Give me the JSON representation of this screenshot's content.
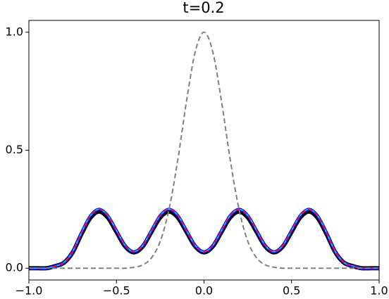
{
  "chart_data": {
    "type": "line",
    "title": "t=0.2",
    "x": [
      -1,
      -0.95,
      -0.9,
      -0.85,
      -0.8,
      -0.75,
      -0.7,
      -0.65,
      -0.6,
      -0.55,
      -0.5,
      -0.45,
      -0.4,
      -0.35,
      -0.3,
      -0.25,
      -0.2,
      -0.15,
      -0.1,
      -0.05,
      0,
      0.05,
      0.1,
      0.15,
      0.2,
      0.25,
      0.3,
      0.35,
      0.4,
      0.45,
      0.5,
      0.55,
      0.6,
      0.65,
      0.7,
      0.75,
      0.8,
      0.85,
      0.9,
      0.95,
      1
    ],
    "series": [
      {
        "color": "#000000",
        "width": 6,
        "dash": false,
        "values": [
          0,
          0,
          0,
          0.009,
          0.023,
          0.067,
          0.144,
          0.212,
          0.24,
          0.215,
          0.154,
          0.092,
          0.067,
          0.092,
          0.154,
          0.215,
          0.24,
          0.215,
          0.154,
          0.092,
          0.067,
          0.092,
          0.154,
          0.215,
          0.24,
          0.215,
          0.154,
          0.092,
          0.067,
          0.092,
          0.154,
          0.215,
          0.24,
          0.212,
          0.144,
          0.067,
          0.023,
          0.009,
          0,
          0,
          0
        ]
      },
      {
        "color": "#0000ff",
        "width": 4,
        "dash": false,
        "values": [
          0,
          0,
          0,
          0.009,
          0.024,
          0.07,
          0.15,
          0.221,
          0.25,
          0.224,
          0.16,
          0.096,
          0.07,
          0.096,
          0.16,
          0.224,
          0.25,
          0.224,
          0.16,
          0.096,
          0.07,
          0.096,
          0.16,
          0.224,
          0.25,
          0.224,
          0.16,
          0.096,
          0.07,
          0.096,
          0.16,
          0.224,
          0.25,
          0.221,
          0.15,
          0.07,
          0.024,
          0.009,
          0,
          0,
          0
        ]
      },
      {
        "color": "#00bfff",
        "width": 2,
        "dash": false,
        "values": [
          0,
          0,
          0,
          0.009,
          0.024,
          0.07,
          0.15,
          0.221,
          0.25,
          0.224,
          0.16,
          0.096,
          0.07,
          0.096,
          0.16,
          0.224,
          0.25,
          0.224,
          0.16,
          0.096,
          0.07,
          0.096,
          0.16,
          0.224,
          0.25,
          0.224,
          0.16,
          0.096,
          0.07,
          0.096,
          0.16,
          0.224,
          0.25,
          0.221,
          0.15,
          0.07,
          0.024,
          0.009,
          0,
          0,
          0
        ]
      },
      {
        "color": "#e8174b",
        "width": 2,
        "dash": true,
        "values": [
          0,
          0,
          0,
          0.009,
          0.024,
          0.07,
          0.15,
          0.221,
          0.25,
          0.224,
          0.16,
          0.096,
          0.07,
          0.096,
          0.16,
          0.224,
          0.25,
          0.224,
          0.16,
          0.096,
          0.07,
          0.096,
          0.16,
          0.224,
          0.25,
          0.224,
          0.16,
          0.096,
          0.07,
          0.096,
          0.16,
          0.224,
          0.25,
          0.221,
          0.15,
          0.07,
          0.024,
          0.009,
          0,
          0,
          0
        ]
      },
      {
        "color": "#808080",
        "width": 2,
        "dash": true,
        "values": [
          0,
          0,
          0,
          0,
          0,
          0,
          0,
          0,
          0,
          0,
          0,
          0,
          0.004,
          0.014,
          0.044,
          0.114,
          0.249,
          0.458,
          0.707,
          0.917,
          1,
          0.917,
          0.707,
          0.458,
          0.249,
          0.114,
          0.044,
          0.014,
          0.004,
          0,
          0,
          0,
          0,
          0,
          0,
          0,
          0,
          0,
          0,
          0,
          0
        ]
      }
    ],
    "xlim": [
      -1,
      1
    ],
    "ylim": [
      -0.05,
      1.05
    ],
    "xticks": [
      {
        "value": -1,
        "label": "−1.0"
      },
      {
        "value": -0.5,
        "label": "−0.5"
      },
      {
        "value": 0,
        "label": "0.0"
      },
      {
        "value": 0.5,
        "label": "0.5"
      },
      {
        "value": 1,
        "label": "1.0"
      }
    ],
    "yticks": [
      {
        "value": 0,
        "label": "0.0"
      },
      {
        "value": 0.5,
        "label": "0.5"
      },
      {
        "value": 1,
        "label": "1.0"
      }
    ],
    "grid": false
  }
}
